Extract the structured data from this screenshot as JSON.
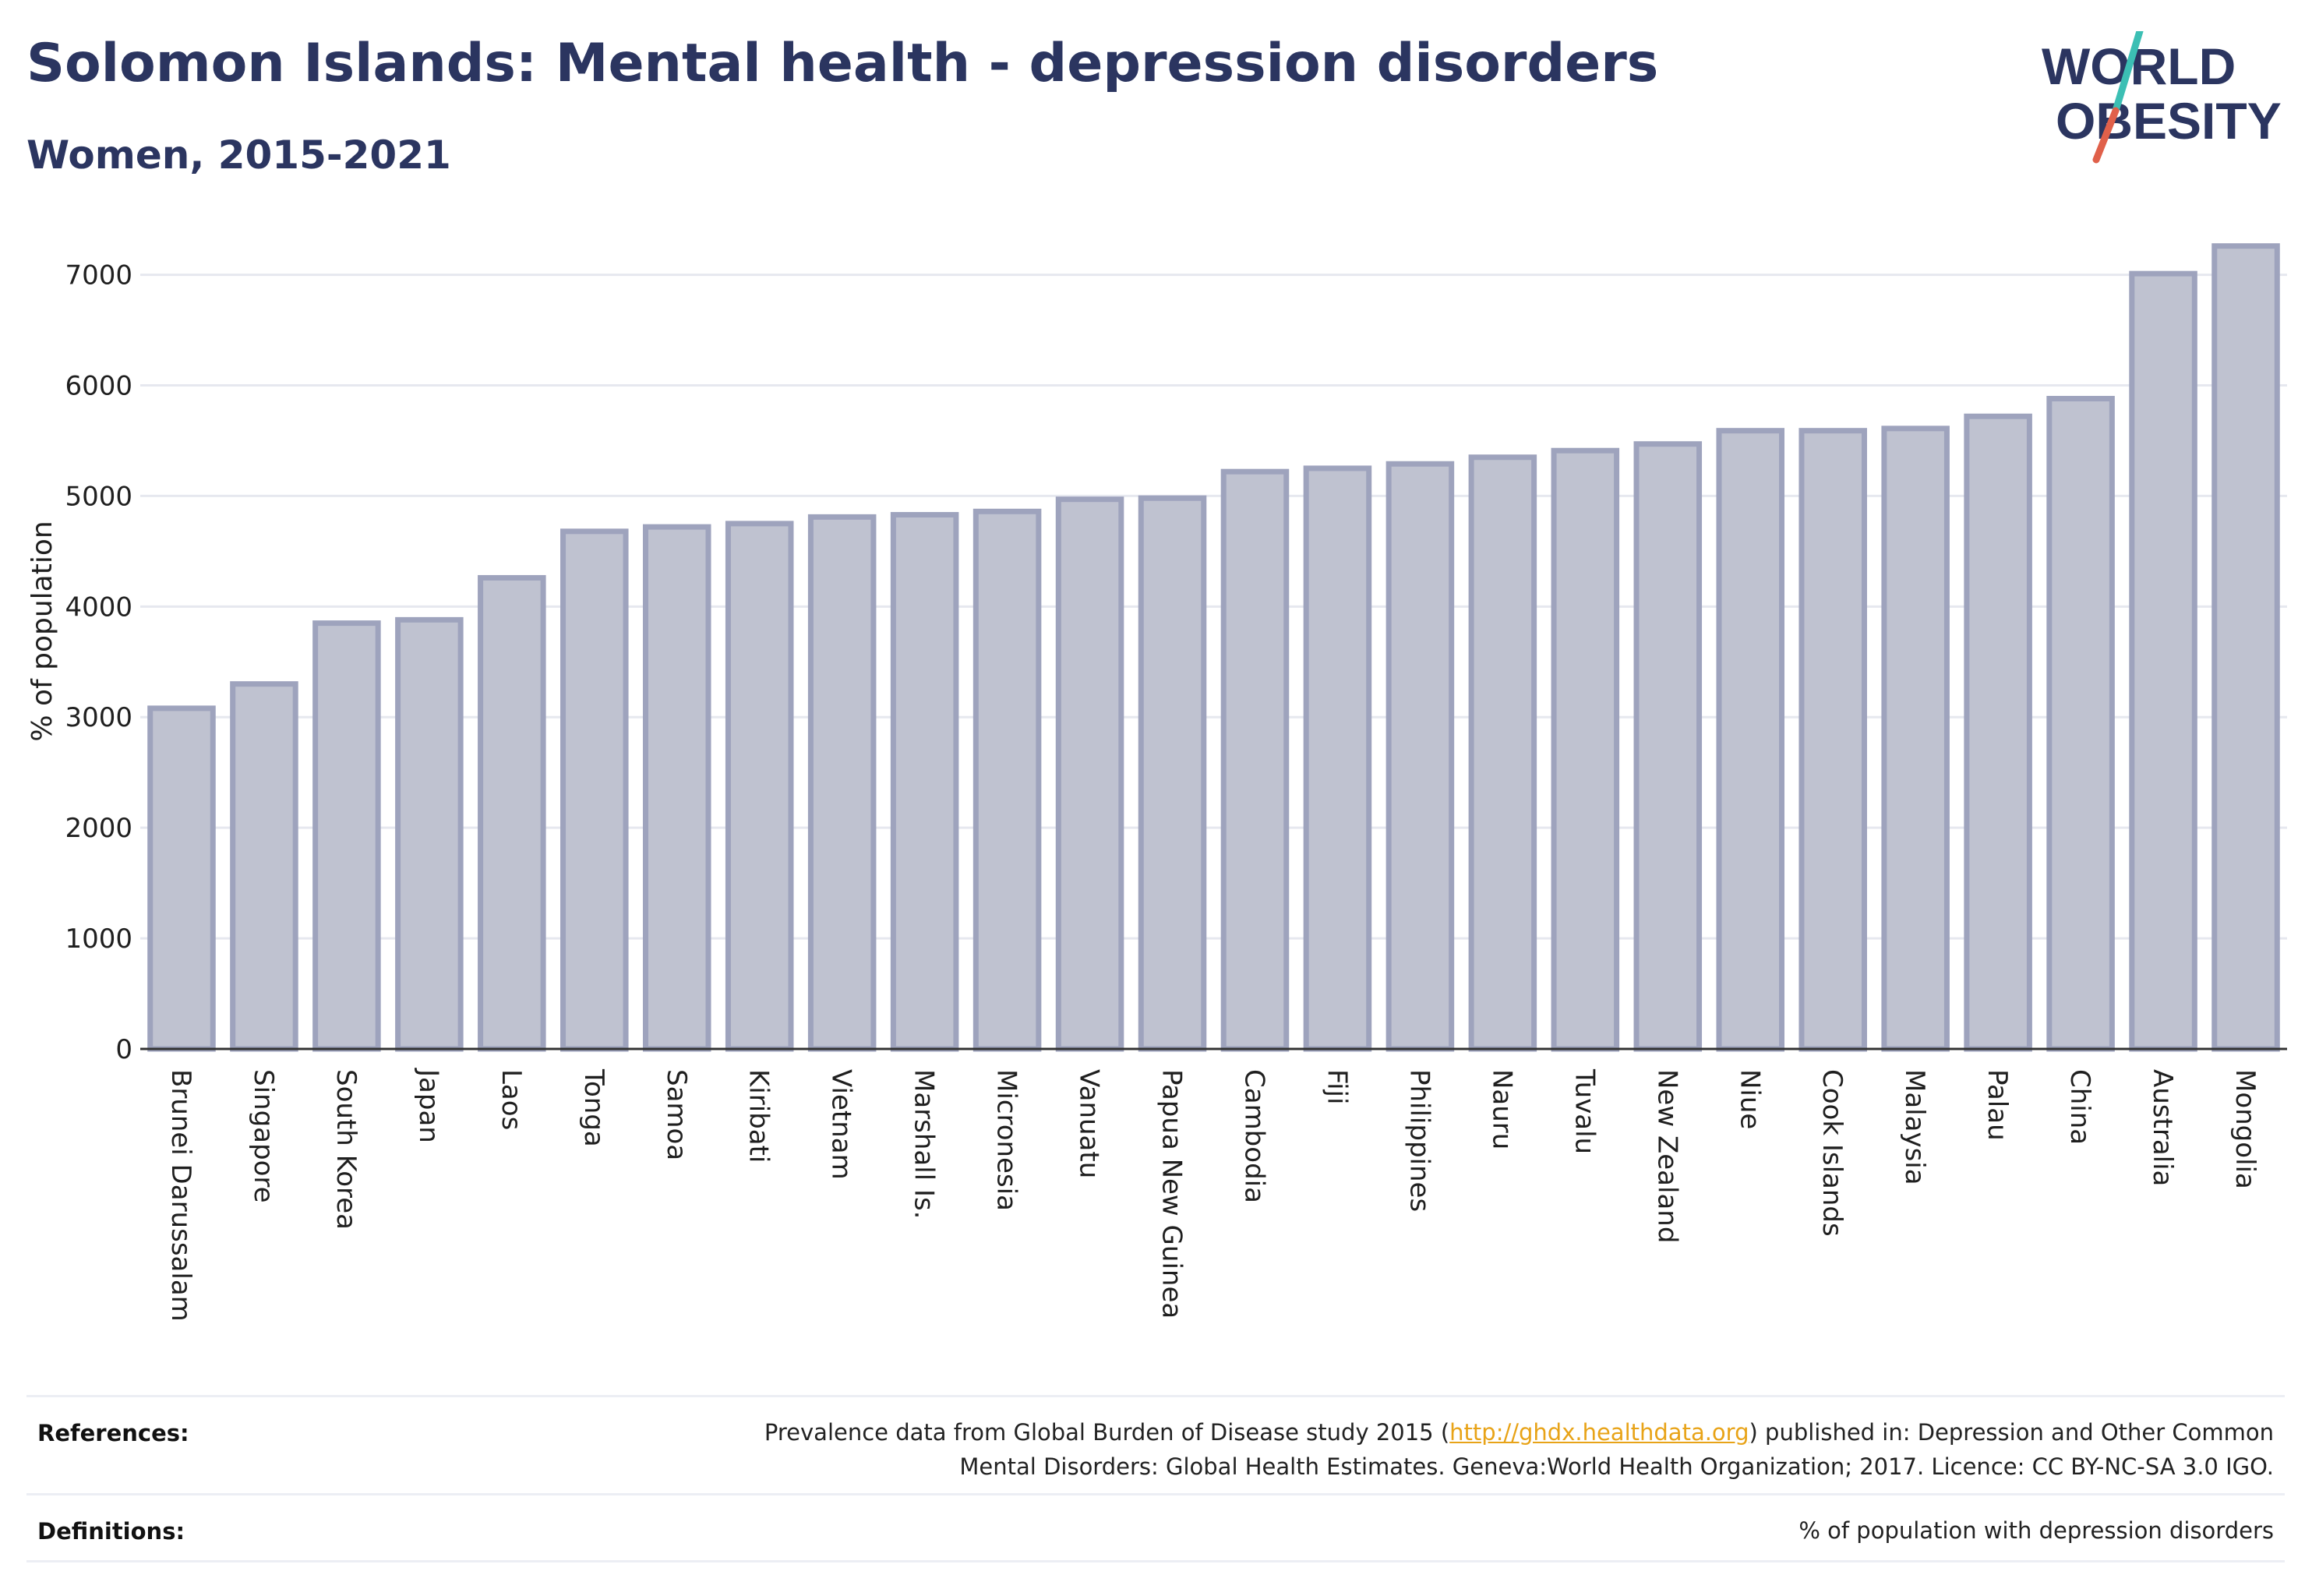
{
  "header": {
    "title": "Solomon Islands: Mental health - depression disorders",
    "subtitle": "Women, 2015-2021"
  },
  "logo": {
    "line1": "WORLD",
    "line2": "OBESITY",
    "colors": {
      "text": "#2b3560",
      "slash_top": "#3cbfb4",
      "slash_bottom": "#e0604a"
    }
  },
  "chart_data": {
    "type": "bar",
    "title": "",
    "xlabel": "",
    "ylabel": "% of population",
    "ylim": [
      0,
      7300
    ],
    "yticks": [
      0,
      1000,
      2000,
      3000,
      4000,
      5000,
      6000,
      7000
    ],
    "grid": true,
    "bar_fill": "#bfc2d0",
    "bar_stroke": "#9ea3bd",
    "categories": [
      "Brunei Darussalam",
      "Singapore",
      "South Korea",
      "Japan",
      "Laos",
      "Tonga",
      "Samoa",
      "Kiribati",
      "Vietnam",
      "Marshall Is.",
      "Micronesia",
      "Vanuatu",
      "Papua New Guinea",
      "Cambodia",
      "Fiji",
      "Philippines",
      "Nauru",
      "Tuvalu",
      "New Zealand",
      "Niue",
      "Cook Islands",
      "Malaysia",
      "Palau",
      "China",
      "Australia",
      "Mongolia"
    ],
    "values": [
      3080,
      3300,
      3850,
      3880,
      4260,
      4680,
      4720,
      4750,
      4810,
      4830,
      4860,
      4970,
      4980,
      5220,
      5250,
      5290,
      5350,
      5410,
      5470,
      5590,
      5590,
      5610,
      5720,
      5880,
      7010,
      7260
    ]
  },
  "footer": {
    "references_label": "References:",
    "references_text_before": "Prevalence data from Global Burden of Disease study 2015 (",
    "references_link": "http://ghdx.healthdata.org",
    "references_text_after": ") published in: Depression and Other Common",
    "references_line2": "Mental Disorders: Global Health Estimates. Geneva:World Health Organization; 2017. Licence: CC BY-NC-SA 3.0 IGO.",
    "definitions_label": "Definitions:",
    "definitions_text": "% of population with depression disorders"
  }
}
